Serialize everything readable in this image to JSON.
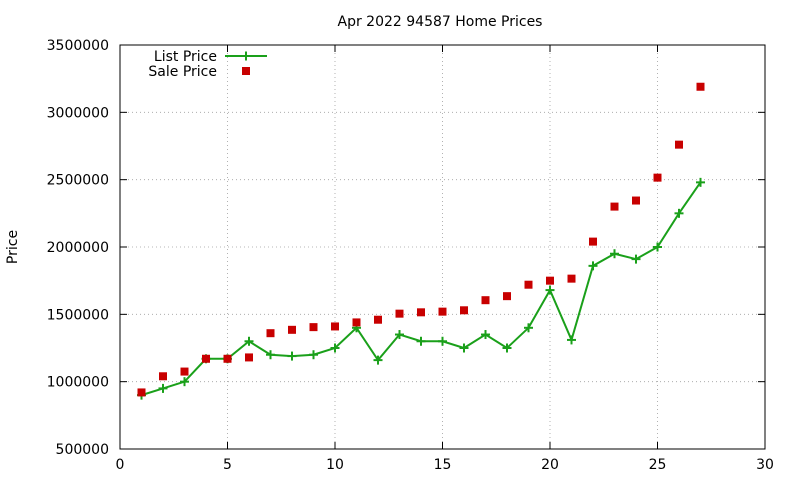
{
  "chart_data": {
    "type": "line",
    "title": "Apr 2022 94587 Home Prices",
    "xlabel": "",
    "ylabel": "Price",
    "xlim": [
      0,
      30
    ],
    "ylim": [
      500000,
      3500000
    ],
    "xticks": [
      0,
      5,
      10,
      15,
      20,
      25,
      30
    ],
    "yticks": [
      500000,
      1000000,
      1500000,
      2000000,
      2500000,
      3000000,
      3500000
    ],
    "x_tick_labels": [
      "0",
      "5",
      "10",
      "15",
      "20",
      "25",
      "30"
    ],
    "y_tick_labels": [
      "500000",
      "1000000",
      "1500000",
      "2000000",
      "2500000",
      "3000000",
      "3500000"
    ],
    "grid": true,
    "legend_position": "top-left",
    "x": [
      1,
      2,
      3,
      4,
      5,
      6,
      7,
      8,
      9,
      10,
      11,
      12,
      13,
      14,
      15,
      16,
      17,
      18,
      19,
      20,
      21,
      22,
      23,
      24,
      25,
      26,
      27
    ],
    "series": [
      {
        "name": "List Price",
        "style": "linespoints",
        "color": "#1aa01a",
        "values": [
          900000,
          950000,
          1000000,
          1170000,
          1170000,
          1300000,
          1200000,
          1190000,
          1200000,
          1250000,
          1400000,
          1160000,
          1350000,
          1300000,
          1300000,
          1250000,
          1350000,
          1250000,
          1400000,
          1680000,
          1310000,
          1860000,
          1950000,
          1910000,
          2000000,
          2250000,
          2480000
        ]
      },
      {
        "name": "Sale Price",
        "style": "points",
        "color": "#c80000",
        "values": [
          920000,
          1040000,
          1075000,
          1170000,
          1170000,
          1180000,
          1360000,
          1385000,
          1405000,
          1410000,
          1440000,
          1460000,
          1505000,
          1515000,
          1520000,
          1530000,
          1605000,
          1635000,
          1720000,
          1750000,
          1765000,
          2040000,
          2300000,
          2345000,
          2515000,
          2760000,
          3190000
        ]
      }
    ]
  }
}
